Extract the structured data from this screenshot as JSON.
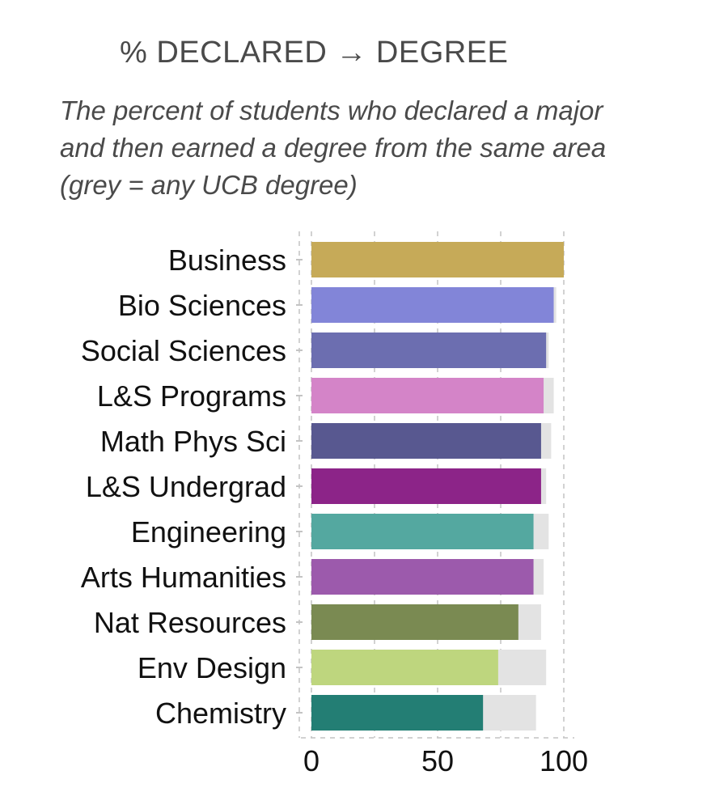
{
  "chart_data": {
    "type": "bar",
    "orientation": "horizontal",
    "title": "% DECLARED → DEGREE",
    "subtitle": "The percent of students who declared a major and then earned a degree from the same area (grey = any UCB degree)",
    "categories": [
      "Business",
      "Bio Sciences",
      "Social Sciences",
      "L&S Programs",
      "Math Phys Sci",
      "L&S Undergrad",
      "Engineering",
      "Arts Humanities",
      "Nat Resources",
      "Env Design",
      "Chemistry"
    ],
    "series": [
      {
        "values": [
          100,
          96,
          93,
          92,
          91,
          91,
          88,
          88,
          82,
          74,
          68
        ],
        "colors": [
          "#c6aa58",
          "#8285d8",
          "#6c6eb0",
          "#d484c8",
          "#585890",
          "#8c2488",
          "#54a8a0",
          "#9c5aac",
          "#7a8a52",
          "#bed67e",
          "#237e74"
        ]
      },
      {
        "values": [
          100,
          97,
          94,
          96,
          95,
          93,
          94,
          92,
          91,
          93,
          89
        ],
        "color": "#e3e3e3"
      }
    ],
    "x_ticks": [
      "0",
      "50",
      "100"
    ],
    "xlim": [
      0,
      100
    ],
    "grid": true,
    "xlabel": "",
    "ylabel": ""
  }
}
